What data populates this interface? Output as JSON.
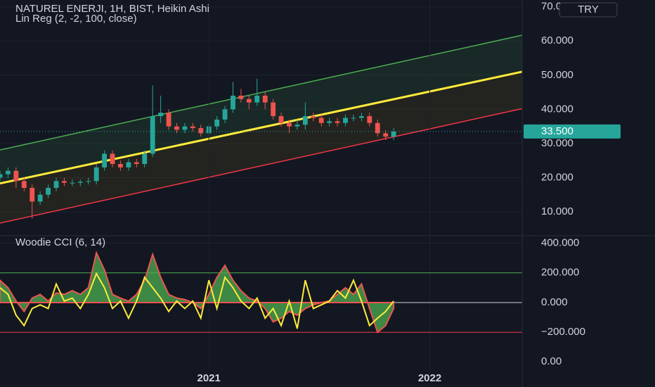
{
  "chart_data": [
    {
      "type": "candlestick",
      "title": "NATUREL ENERJI, 1H, BIST, Heikin Ashi",
      "subtitle": "Lin Reg (2, -2, 100, close)",
      "currency": "TRY",
      "xlim": [
        0,
        130
      ],
      "ylim": [
        3,
        72
      ],
      "yticks": [
        {
          "value": 10,
          "label": "10.000"
        },
        {
          "value": 20,
          "label": "20.000"
        },
        {
          "value": 30,
          "label": "30.000"
        },
        {
          "value": 40,
          "label": "40.000"
        },
        {
          "value": 50,
          "label": "50.000"
        },
        {
          "value": 60,
          "label": "60.000"
        },
        {
          "value": 70,
          "label": "70.000"
        }
      ],
      "last_price": {
        "value": 33.5,
        "label": "33.500"
      },
      "up_color": "#26a69a",
      "down_color": "#ef5350",
      "x": [
        0,
        2,
        4,
        6,
        8,
        10,
        12,
        14,
        16,
        18,
        20,
        22,
        24,
        26,
        28,
        30,
        32,
        34,
        36,
        38,
        40,
        42,
        44,
        46,
        48,
        50,
        52,
        54,
        56,
        58,
        60,
        62,
        64,
        66,
        68,
        70,
        72,
        74,
        76,
        78,
        80,
        82,
        84,
        86,
        88,
        90,
        92,
        94,
        96,
        98
      ],
      "open": [
        20,
        21,
        22,
        19,
        17,
        13,
        15,
        17,
        19,
        18.5,
        18.5,
        18.8,
        19,
        23,
        27,
        24,
        23,
        24.5,
        24,
        27,
        38,
        39,
        35,
        34,
        35,
        34.5,
        33,
        35,
        37,
        40,
        44,
        43,
        42,
        44,
        42,
        38,
        36,
        35,
        35.5,
        38,
        37.5,
        36,
        36.5,
        36,
        37.5,
        37.5,
        38,
        36,
        33,
        32
      ],
      "high": [
        22,
        23,
        23,
        20,
        18,
        16,
        18,
        20,
        20,
        19.5,
        19.5,
        20,
        24,
        28,
        28,
        25,
        25.5,
        25.5,
        28,
        47,
        44,
        40,
        36,
        36,
        36,
        35.5,
        36,
        38,
        41,
        48,
        46,
        44,
        49,
        45,
        43,
        39,
        37,
        37,
        42,
        39,
        38.5,
        37.5,
        37.5,
        38.5,
        38.5,
        39,
        39,
        37,
        34,
        34.5
      ],
      "low": [
        19,
        20,
        17,
        16,
        8,
        12,
        14,
        16,
        17.5,
        17.5,
        17.5,
        18,
        18,
        22,
        23,
        22,
        22,
        23,
        23,
        26,
        36,
        34,
        33,
        33,
        33.5,
        32,
        32,
        34,
        36,
        39,
        42,
        40,
        41,
        40,
        37,
        35,
        33,
        34,
        34,
        36.5,
        35,
        35,
        35,
        35,
        36.5,
        36.5,
        35,
        32,
        31,
        31
      ],
      "close": [
        21,
        22,
        19,
        17,
        13,
        15,
        17,
        19,
        18.5,
        18.5,
        18.8,
        19,
        23,
        27,
        24,
        23,
        24.5,
        24,
        27,
        38,
        39,
        35,
        34,
        35,
        34.5,
        33,
        35,
        37,
        40,
        44,
        43,
        42,
        44,
        42,
        38,
        36,
        35,
        35.5,
        38,
        37.5,
        36,
        36.5,
        36,
        37.5,
        37.5,
        38,
        36,
        33,
        32,
        33.5
      ],
      "regression": {
        "x": [
          0,
          130
        ],
        "upper": {
          "color": "#4caf50",
          "values": [
            28.1,
            61.7
          ]
        },
        "center": {
          "color": "#ffeb3b",
          "values": [
            18.3,
            51
          ]
        },
        "lower": {
          "color": "#f23645",
          "values": [
            6.7,
            40.2
          ]
        }
      }
    },
    {
      "type": "cci",
      "title": "Woodie CCI (6, 14)",
      "xlim": [
        0,
        130
      ],
      "ylim": [
        -450,
        450
      ],
      "yticks": [
        {
          "value": 400,
          "label": "400.000"
        },
        {
          "value": 200,
          "label": "200.000"
        },
        {
          "value": 0,
          "label": "0.000"
        },
        {
          "value": -200,
          "label": "−200.000"
        }
      ],
      "extra_label": "0.00",
      "levels": [
        {
          "value": 200,
          "color": "#4caf50"
        },
        {
          "value": 0,
          "color": "#d1d4dc"
        },
        {
          "value": -200,
          "color": "#f23645"
        }
      ],
      "xticks": [
        {
          "value": 52,
          "label": "2021"
        },
        {
          "value": 107,
          "label": "2022"
        }
      ],
      "x": [
        0,
        2,
        4,
        6,
        8,
        10,
        12,
        14,
        16,
        18,
        20,
        22,
        24,
        26,
        28,
        30,
        32,
        34,
        36,
        38,
        40,
        42,
        44,
        46,
        48,
        50,
        52,
        54,
        56,
        58,
        60,
        62,
        64,
        66,
        68,
        70,
        72,
        74,
        76,
        78,
        80,
        82,
        84,
        86,
        88,
        90,
        92,
        94,
        96,
        98
      ],
      "series": [
        {
          "color": "#4caf50",
          "values": [
            150,
            100,
            10,
            -60,
            30,
            55,
            10,
            65,
            55,
            80,
            55,
            100,
            335,
            220,
            55,
            30,
            10,
            55,
            150,
            325,
            170,
            55,
            30,
            20,
            0,
            -40,
            55,
            170,
            250,
            150,
            80,
            30,
            10,
            -40,
            -130,
            -105,
            -60,
            -85,
            -40,
            -15,
            0,
            10,
            55,
            100,
            55,
            125,
            -40,
            -200,
            -155,
            -40
          ]
        },
        {
          "color": "#ffeb3b",
          "values": [
            100,
            55,
            -85,
            -155,
            -40,
            -15,
            -40,
            125,
            10,
            30,
            -40,
            55,
            195,
            100,
            -40,
            10,
            -105,
            10,
            170,
            100,
            30,
            -60,
            10,
            -40,
            10,
            -105,
            150,
            -40,
            170,
            100,
            10,
            -40,
            30,
            -105,
            -40,
            -155,
            10,
            -175,
            150,
            -40,
            -15,
            10,
            80,
            30,
            150,
            10,
            -155,
            -105,
            -60,
            10
          ]
        }
      ]
    }
  ]
}
